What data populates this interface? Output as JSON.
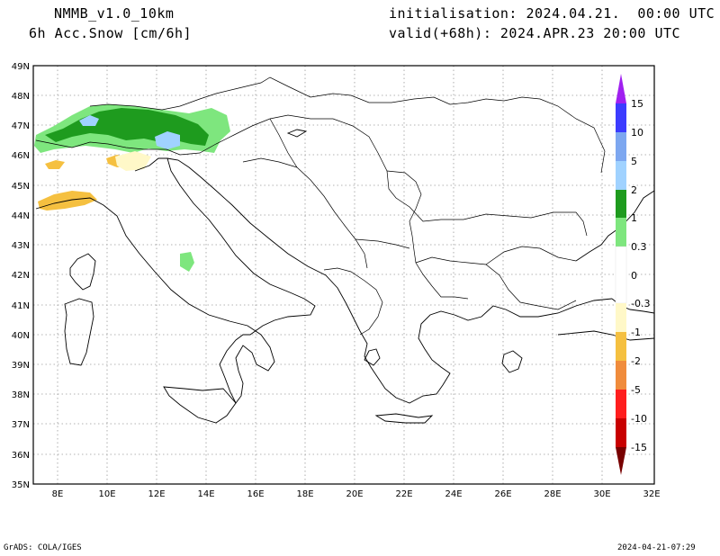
{
  "header": {
    "model": "NMMB_v1.0_10km",
    "field": "6h Acc.Snow [cm/6h]",
    "init": "initialisation: 2024.04.21.  00:00 UTC",
    "valid": "valid(+68h): 2024.APR.23 20:00 UTC"
  },
  "map": {
    "lat_labels": [
      "49N",
      "48N",
      "47N",
      "46N",
      "45N",
      "44N",
      "43N",
      "42N",
      "41N",
      "40N",
      "39N",
      "38N",
      "37N",
      "36N",
      "35N"
    ],
    "lon_labels": [
      "8E",
      "10E",
      "12E",
      "14E",
      "16E",
      "18E",
      "20E",
      "22E",
      "24E",
      "26E",
      "28E",
      "30E",
      "32E"
    ]
  },
  "colorbar": {
    "labels": [
      "15",
      "10",
      "5",
      "2",
      "1",
      "0.3",
      "0",
      "-0.3",
      "-1",
      "-2",
      "-5",
      "-10",
      "-15"
    ],
    "colors": [
      "#a020f0",
      "#3c3cff",
      "#7da7f0",
      "#a0d2ff",
      "#1e9b1e",
      "#7ee67e",
      "#ffffff",
      "#fff8c8",
      "#f5c040",
      "#f08c3c",
      "#ff1e1e",
      "#c80000",
      "#780000"
    ]
  },
  "footer": {
    "left": "GrADS: COLA/IGES",
    "right": "2024-04-21-07:29"
  }
}
